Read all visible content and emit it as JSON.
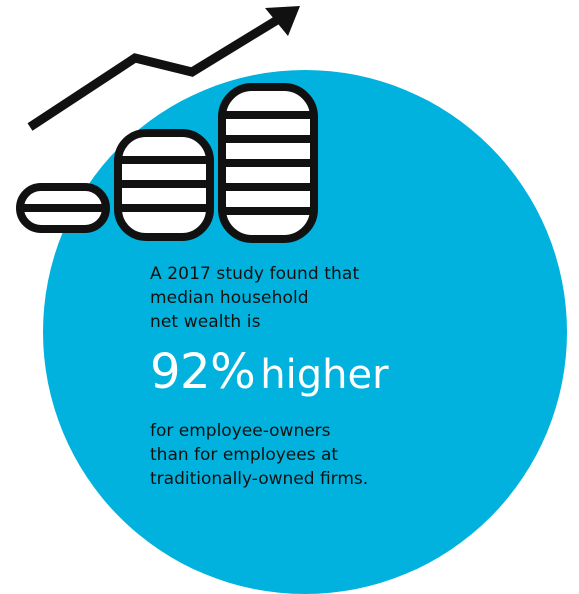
{
  "colors": {
    "circle": "#00b2dd",
    "ink": "#111111",
    "highlight": "#ffffff"
  },
  "icons": {
    "trend": "trend-arrow-icon",
    "coins": "coin-stack-icon"
  },
  "infographic": {
    "intro_lines": [
      "A 2017 study found that",
      "median household",
      "net wealth is"
    ],
    "stat_value": "92%",
    "stat_word": "higher",
    "outro_lines": [
      "for employee-owners",
      "than for employees at",
      "traditionally-owned firms."
    ]
  }
}
